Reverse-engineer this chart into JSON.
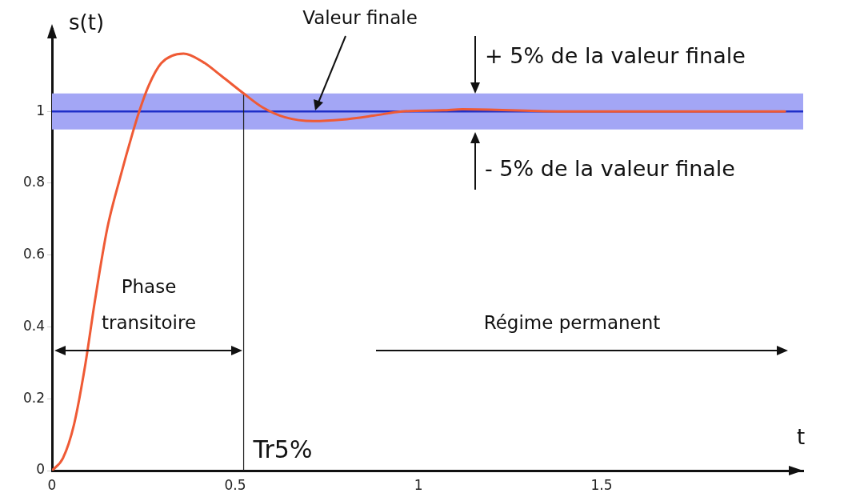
{
  "chart_data": {
    "type": "line",
    "xlabel": "t",
    "ylabel": "s(t)",
    "series": [
      {
        "color": "#ef5a35",
        "x": [
          0,
          0.03,
          0.06,
          0.091,
          0.117,
          0.151,
          0.186,
          0.22,
          0.238,
          0.264,
          0.298,
          0.359,
          0.41,
          0.462,
          0.523,
          0.575,
          0.635,
          0.713,
          0.791,
          0.877,
          0.955,
          1.067,
          1.12,
          1.38,
          2.0
        ],
        "values": [
          0,
          0.035,
          0.128,
          0.296,
          0.472,
          0.675,
          0.816,
          0.94,
          1.0,
          1.072,
          1.134,
          1.161,
          1.139,
          1.099,
          1.05,
          1.011,
          0.984,
          0.973,
          0.977,
          0.988,
          1.0,
          1.003,
          1.006,
          1.0,
          1.0
        ]
      }
    ],
    "xlim": [
      0,
      2.05
    ],
    "ylim": [
      0,
      1.23
    ],
    "xticks": [
      0,
      0.5,
      1,
      1.5
    ],
    "yticks": [
      0,
      0.2,
      0.4,
      0.6,
      0.8,
      1
    ],
    "grid": false,
    "legend": false,
    "marker": "none",
    "line_style": "solid",
    "bands": [
      {
        "axis": "y",
        "from": 0.95,
        "to": 1.05,
        "color": "#a3a6f5"
      }
    ],
    "ref_lines": [
      {
        "axis": "y",
        "value": 1,
        "color": "#1f2fc8"
      },
      {
        "axis": "x",
        "value": 0.523,
        "label": "Tr5%",
        "color": "#222222"
      }
    ],
    "annotations": [
      "Valeur finale",
      "+ 5% de la valeur finale",
      "- 5% de la valeur finale",
      "Phase transitoire",
      "Régime permanent"
    ]
  }
}
